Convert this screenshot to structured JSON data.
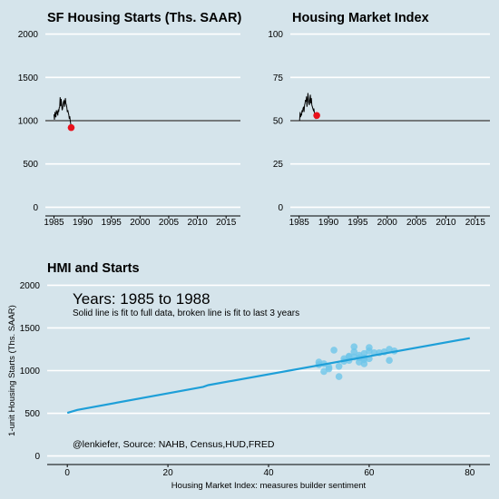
{
  "chart_data": [
    {
      "type": "line",
      "title": "SF Housing Starts (Ths. SAAR)",
      "xlim": [
        1983.5,
        2017.5
      ],
      "ylim": [
        -100,
        2100
      ],
      "x_ticks": [
        1985,
        1990,
        1995,
        2000,
        2005,
        2010,
        2015
      ],
      "y_ticks": [
        0,
        500,
        1000,
        1500,
        2000
      ],
      "grid": "horizontal",
      "reference_line": 1000,
      "series": [
        {
          "color": "#000000",
          "x": [
            1985.0,
            1985.08,
            1985.17,
            1985.25,
            1985.33,
            1985.42,
            1985.5,
            1985.58,
            1985.67,
            1985.75,
            1985.83,
            1985.92,
            1986.0,
            1986.08,
            1986.17,
            1986.25,
            1986.33,
            1986.42,
            1986.5,
            1986.58,
            1986.67,
            1986.75,
            1986.83,
            1986.92,
            1987.0,
            1987.08,
            1987.17,
            1987.25,
            1987.33,
            1987.42,
            1987.5,
            1987.58,
            1987.67,
            1987.75,
            1987.83,
            1987.92,
            1988.0
          ],
          "y": [
            1072,
            1010,
            1100,
            1060,
            1040,
            1120,
            1080,
            1110,
            1060,
            1130,
            1100,
            1150,
            1160,
            1270,
            1170,
            1250,
            1190,
            1120,
            1140,
            1190,
            1220,
            1230,
            1160,
            1210,
            1260,
            1200,
            1180,
            1150,
            1100,
            1120,
            1090,
            1070,
            1020,
            1050,
            1000,
            960,
            920
          ]
        }
      ],
      "highlight": {
        "x": 1988.0,
        "y": 920,
        "color": "#e8111c"
      }
    },
    {
      "type": "line",
      "title": "Housing Market Index",
      "xlim": [
        1983.5,
        2017.5
      ],
      "ylim": [
        -5,
        105
      ],
      "x_ticks": [
        1985,
        1990,
        1995,
        2000,
        2005,
        2010,
        2015
      ],
      "y_ticks": [
        0,
        25,
        50,
        75,
        100
      ],
      "grid": "horizontal",
      "reference_line": 50,
      "series": [
        {
          "color": "#000000",
          "x": [
            1985.0,
            1985.08,
            1985.17,
            1985.25,
            1985.33,
            1985.42,
            1985.5,
            1985.58,
            1985.67,
            1985.75,
            1985.83,
            1985.92,
            1986.0,
            1986.08,
            1986.17,
            1986.25,
            1986.33,
            1986.42,
            1986.5,
            1986.58,
            1986.67,
            1986.75,
            1986.83,
            1986.92,
            1987.0,
            1987.08,
            1987.17,
            1987.25,
            1987.33,
            1987.42,
            1987.5,
            1987.58,
            1987.67,
            1987.75,
            1987.83,
            1987.92,
            1988.0
          ],
          "y": [
            50,
            50,
            55,
            52,
            54,
            53,
            56,
            55,
            57,
            58,
            55,
            59,
            60,
            62,
            61,
            64,
            58,
            61,
            66,
            63,
            60,
            59,
            62,
            65,
            60,
            63,
            59,
            58,
            57,
            56,
            57,
            55,
            54,
            53,
            51,
            52,
            53
          ]
        }
      ],
      "highlight": {
        "x": 1988.0,
        "y": 53,
        "color": "#e8111c"
      }
    },
    {
      "type": "scatter",
      "title": "HMI and Starts",
      "xlabel": "Housing Market Index: measures builder sentiment",
      "ylabel": "1-unit Housing Starts (Ths. SAAR)",
      "xlim": [
        -4,
        84
      ],
      "ylim": [
        -100,
        2100
      ],
      "x_ticks": [
        0,
        20,
        40,
        60,
        80
      ],
      "y_ticks": [
        0,
        500,
        1000,
        1500,
        2000
      ],
      "grid": "horizontal",
      "annotation_years": "Years: 1985 to  1988",
      "annotation_note": "Solid line is fit to full data, broken line is fit to last 3 years",
      "caption": "@lenkiefer, Source: NAHB, Census,HUD,FRED",
      "point_color": "#6ec6ea",
      "points": [
        {
          "x": 50,
          "y": 1070
        },
        {
          "x": 50,
          "y": 1100
        },
        {
          "x": 51,
          "y": 990
        },
        {
          "x": 51,
          "y": 1080
        },
        {
          "x": 52,
          "y": 1020
        },
        {
          "x": 52,
          "y": 1040
        },
        {
          "x": 53,
          "y": 1240
        },
        {
          "x": 54,
          "y": 930
        },
        {
          "x": 54,
          "y": 1050
        },
        {
          "x": 55,
          "y": 1110
        },
        {
          "x": 55,
          "y": 1140
        },
        {
          "x": 56,
          "y": 1120
        },
        {
          "x": 56,
          "y": 1170
        },
        {
          "x": 56,
          "y": 1160
        },
        {
          "x": 57,
          "y": 1220
        },
        {
          "x": 57,
          "y": 1160
        },
        {
          "x": 57,
          "y": 1280
        },
        {
          "x": 58,
          "y": 1180
        },
        {
          "x": 58,
          "y": 1150
        },
        {
          "x": 58,
          "y": 1100
        },
        {
          "x": 59,
          "y": 1130
        },
        {
          "x": 59,
          "y": 1200
        },
        {
          "x": 59,
          "y": 1080
        },
        {
          "x": 59,
          "y": 1150
        },
        {
          "x": 60,
          "y": 1230
        },
        {
          "x": 60,
          "y": 1270
        },
        {
          "x": 60,
          "y": 1140
        },
        {
          "x": 61,
          "y": 1210
        },
        {
          "x": 62,
          "y": 1210
        },
        {
          "x": 63,
          "y": 1220
        },
        {
          "x": 64,
          "y": 1250
        },
        {
          "x": 64,
          "y": 1120
        },
        {
          "x": 65,
          "y": 1230
        }
      ],
      "fit_line": {
        "color": "#1e9fd8",
        "x": [
          0,
          2,
          27,
          28,
          80
        ],
        "y": [
          505,
          540,
          810,
          830,
          1380
        ]
      }
    }
  ]
}
